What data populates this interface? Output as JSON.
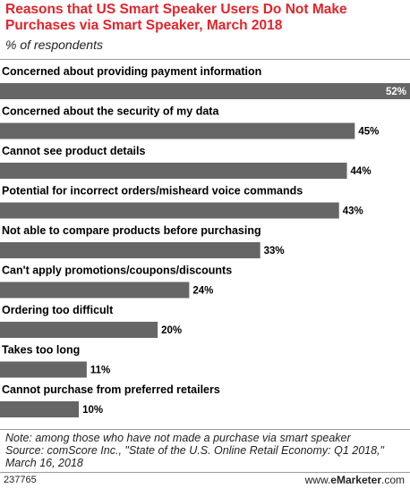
{
  "header": {
    "title": "Reasons that US Smart Speaker Users Do Not Make Purchases via Smart Speaker, March 2018",
    "subtitle": "% of respondents"
  },
  "chart_data": {
    "type": "bar",
    "orientation": "horizontal",
    "categories": [
      "Concerned about providing payment information",
      "Concerned about the security of my data",
      "Cannot see product details",
      "Potential for incorrect orders/misheard voice commands",
      "Not able to compare products before purchasing",
      "Can't apply promotions/coupons/discounts",
      "Ordering too difficult",
      "Takes too long",
      "Cannot purchase from preferred retailers"
    ],
    "values": [
      52,
      45,
      44,
      43,
      33,
      24,
      20,
      11,
      10
    ],
    "value_labels": [
      "52%",
      "45%",
      "44%",
      "43%",
      "33%",
      "24%",
      "20%",
      "11%",
      "10%"
    ],
    "xlim": [
      0,
      52
    ],
    "bar_color": "#666666",
    "grid": false
  },
  "footer": {
    "note": "Note: among those who have not made a purchase via smart speaker",
    "source": "Source: comScore Inc., \"State of the U.S. Online Retail Economy: Q1 2018,\"\nMarch 16, 2018",
    "chart_id": "237765",
    "brand_prefix": "www.",
    "brand_name": "eMarketer",
    "brand_suffix": ".com"
  }
}
